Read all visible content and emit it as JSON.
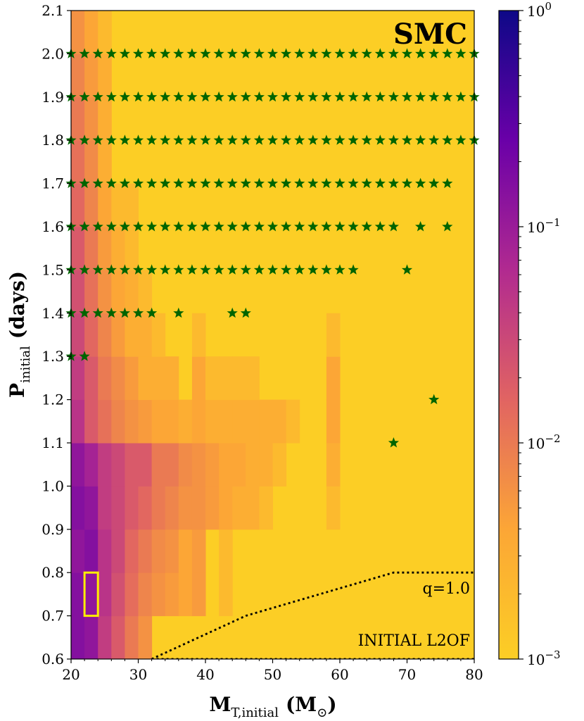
{
  "chart_data": {
    "type": "heatmap",
    "title": "SMC",
    "xlabel": {
      "main": "M",
      "sub": "T,initial",
      "unit": "(M",
      "unit_sub": "⊙",
      "unit_close": ")"
    },
    "ylabel": {
      "main": "P",
      "sub": "initial",
      "unit": "(days)"
    },
    "xlim": [
      20,
      80
    ],
    "ylim": [
      0.6,
      2.1
    ],
    "xticks": [
      "20",
      "30",
      "40",
      "50",
      "60",
      "70",
      "80"
    ],
    "yticks": [
      "0.6",
      "0.7",
      "0.8",
      "0.9",
      "1.0",
      "1.1",
      "1.2",
      "1.3",
      "1.4",
      "1.5",
      "1.6",
      "1.7",
      "1.8",
      "1.9",
      "2.0",
      "2.1"
    ],
    "colorbar": {
      "scale": "log",
      "range": [
        0.001,
        1
      ],
      "tick_labels": [
        {
          "base": "10",
          "exp": "0"
        },
        {
          "base": "10",
          "exp": "−1"
        },
        {
          "base": "10",
          "exp": "−2"
        },
        {
          "base": "10",
          "exp": "−3"
        }
      ],
      "colormap": [
        "#0d0887",
        "#6a00a8",
        "#b12a90",
        "#e16462",
        "#fca636",
        "#fcce25"
      ]
    },
    "background_value": 0.001,
    "cells": [
      [
        20,
        0.6,
        0.15
      ],
      [
        22,
        0.6,
        0.12
      ],
      [
        24,
        0.6,
        0.04
      ],
      [
        26,
        0.6,
        0.02
      ],
      [
        28,
        0.6,
        0.01
      ],
      [
        30,
        0.6,
        0.006
      ],
      [
        20,
        0.7,
        0.15
      ],
      [
        22,
        0.7,
        0.12
      ],
      [
        24,
        0.7,
        0.05
      ],
      [
        26,
        0.7,
        0.025
      ],
      [
        28,
        0.7,
        0.013
      ],
      [
        30,
        0.7,
        0.008
      ],
      [
        32,
        0.7,
        0.006
      ],
      [
        34,
        0.7,
        0.005
      ],
      [
        36,
        0.7,
        0.004
      ],
      [
        38,
        0.7,
        0.005
      ],
      [
        42,
        0.7,
        0.002
      ],
      [
        20,
        0.8,
        0.12
      ],
      [
        22,
        0.8,
        0.15
      ],
      [
        24,
        0.8,
        0.05
      ],
      [
        26,
        0.8,
        0.03
      ],
      [
        28,
        0.8,
        0.015
      ],
      [
        30,
        0.8,
        0.01
      ],
      [
        32,
        0.8,
        0.007
      ],
      [
        34,
        0.8,
        0.006
      ],
      [
        36,
        0.8,
        0.004
      ],
      [
        38,
        0.8,
        0.005
      ],
      [
        42,
        0.8,
        0.002
      ],
      [
        20,
        0.9,
        0.15
      ],
      [
        22,
        0.9,
        0.12
      ],
      [
        24,
        0.9,
        0.04
      ],
      [
        26,
        0.9,
        0.03
      ],
      [
        28,
        0.9,
        0.02
      ],
      [
        30,
        0.9,
        0.015
      ],
      [
        32,
        0.9,
        0.01
      ],
      [
        34,
        0.9,
        0.008
      ],
      [
        36,
        0.9,
        0.006
      ],
      [
        38,
        0.9,
        0.006
      ],
      [
        40,
        0.9,
        0.005
      ],
      [
        42,
        0.9,
        0.004
      ],
      [
        44,
        0.9,
        0.003
      ],
      [
        46,
        0.9,
        0.003
      ],
      [
        48,
        0.9,
        0.002
      ],
      [
        58,
        0.9,
        0.002
      ],
      [
        20,
        1.0,
        0.12
      ],
      [
        22,
        1.0,
        0.08
      ],
      [
        24,
        1.0,
        0.04
      ],
      [
        26,
        1.0,
        0.03
      ],
      [
        28,
        1.0,
        0.02
      ],
      [
        30,
        1.0,
        0.02
      ],
      [
        32,
        1.0,
        0.01
      ],
      [
        34,
        1.0,
        0.01
      ],
      [
        36,
        1.0,
        0.007
      ],
      [
        38,
        1.0,
        0.006
      ],
      [
        40,
        1.0,
        0.005
      ],
      [
        42,
        1.0,
        0.004
      ],
      [
        44,
        1.0,
        0.004
      ],
      [
        46,
        1.0,
        0.003
      ],
      [
        48,
        1.0,
        0.003
      ],
      [
        50,
        1.0,
        0.002
      ],
      [
        58,
        1.0,
        0.003
      ],
      [
        20,
        1.1,
        0.05
      ],
      [
        22,
        1.1,
        0.02
      ],
      [
        24,
        1.1,
        0.012
      ],
      [
        26,
        1.1,
        0.008
      ],
      [
        28,
        1.1,
        0.006
      ],
      [
        30,
        1.1,
        0.005
      ],
      [
        32,
        1.1,
        0.004
      ],
      [
        34,
        1.1,
        0.004
      ],
      [
        36,
        1.1,
        0.003
      ],
      [
        38,
        1.1,
        0.004
      ],
      [
        40,
        1.1,
        0.003
      ],
      [
        42,
        1.1,
        0.003
      ],
      [
        44,
        1.1,
        0.003
      ],
      [
        46,
        1.1,
        0.003
      ],
      [
        48,
        1.1,
        0.003
      ],
      [
        50,
        1.1,
        0.003
      ],
      [
        52,
        1.1,
        0.002
      ],
      [
        58,
        1.1,
        0.004
      ],
      [
        20,
        1.2,
        0.04
      ],
      [
        22,
        1.2,
        0.02
      ],
      [
        24,
        1.2,
        0.01
      ],
      [
        26,
        1.2,
        0.007
      ],
      [
        28,
        1.2,
        0.005
      ],
      [
        30,
        1.2,
        0.003
      ],
      [
        32,
        1.2,
        0.003
      ],
      [
        34,
        1.2,
        0.003
      ],
      [
        38,
        1.2,
        0.004
      ],
      [
        40,
        1.2,
        0.002
      ],
      [
        42,
        1.2,
        0.002
      ],
      [
        44,
        1.2,
        0.002
      ],
      [
        46,
        1.2,
        0.002
      ],
      [
        58,
        1.2,
        0.004
      ],
      [
        20,
        1.3,
        0.03
      ],
      [
        22,
        1.3,
        0.015
      ],
      [
        24,
        1.3,
        0.008
      ],
      [
        26,
        1.3,
        0.005
      ],
      [
        28,
        1.3,
        0.003
      ],
      [
        30,
        1.3,
        0.003
      ],
      [
        32,
        1.3,
        0.002
      ],
      [
        38,
        1.3,
        0.002
      ],
      [
        58,
        1.3,
        0.002
      ],
      [
        20,
        1.4,
        0.025
      ],
      [
        22,
        1.4,
        0.012
      ],
      [
        24,
        1.4,
        0.006
      ],
      [
        26,
        1.4,
        0.004
      ],
      [
        28,
        1.4,
        0.003
      ],
      [
        30,
        1.4,
        0.002
      ],
      [
        20,
        1.5,
        0.02
      ],
      [
        22,
        1.5,
        0.01
      ],
      [
        24,
        1.5,
        0.005
      ],
      [
        26,
        1.5,
        0.003
      ],
      [
        28,
        1.5,
        0.002
      ],
      [
        20,
        1.6,
        0.015
      ],
      [
        22,
        1.6,
        0.008
      ],
      [
        24,
        1.6,
        0.004
      ],
      [
        26,
        1.6,
        0.002
      ],
      [
        28,
        1.6,
        0.002
      ],
      [
        20,
        1.7,
        0.012
      ],
      [
        22,
        1.7,
        0.007
      ],
      [
        24,
        1.7,
        0.003
      ],
      [
        20,
        1.8,
        0.01
      ],
      [
        22,
        1.8,
        0.006
      ],
      [
        24,
        1.8,
        0.003
      ],
      [
        20,
        1.9,
        0.008
      ],
      [
        22,
        1.9,
        0.005
      ],
      [
        24,
        1.9,
        0.003
      ],
      [
        20,
        2.0,
        0.006
      ],
      [
        22,
        2.0,
        0.004
      ],
      [
        24,
        2.0,
        0.002
      ]
    ],
    "star_series": [
      {
        "y": 2.0,
        "x": [
          20,
          22,
          24,
          26,
          28,
          30,
          32,
          34,
          36,
          38,
          40,
          42,
          44,
          46,
          48,
          50,
          52,
          54,
          56,
          58,
          60,
          62,
          64,
          66,
          68,
          70,
          72,
          74,
          76,
          78,
          80
        ]
      },
      {
        "y": 1.9,
        "x": [
          20,
          22,
          24,
          26,
          28,
          30,
          32,
          34,
          36,
          38,
          40,
          42,
          44,
          46,
          48,
          50,
          52,
          54,
          56,
          58,
          60,
          62,
          64,
          66,
          68,
          70,
          72,
          74,
          76,
          78,
          80
        ]
      },
      {
        "y": 1.8,
        "x": [
          20,
          22,
          24,
          26,
          28,
          30,
          32,
          34,
          36,
          38,
          40,
          42,
          44,
          46,
          48,
          50,
          52,
          54,
          56,
          58,
          60,
          62,
          64,
          66,
          68,
          70,
          72,
          74,
          76,
          78,
          80
        ]
      },
      {
        "y": 1.7,
        "x": [
          20,
          22,
          24,
          26,
          28,
          30,
          32,
          34,
          36,
          38,
          40,
          42,
          44,
          46,
          48,
          50,
          52,
          54,
          56,
          58,
          60,
          62,
          64,
          66,
          68,
          70,
          72,
          74,
          76
        ]
      },
      {
        "y": 1.6,
        "x": [
          20,
          22,
          24,
          26,
          28,
          30,
          32,
          34,
          36,
          38,
          40,
          42,
          44,
          46,
          48,
          50,
          52,
          54,
          56,
          58,
          60,
          62,
          64,
          66,
          68,
          72,
          76
        ]
      },
      {
        "y": 1.5,
        "x": [
          20,
          22,
          24,
          26,
          28,
          30,
          32,
          34,
          36,
          38,
          40,
          42,
          44,
          46,
          48,
          50,
          52,
          54,
          56,
          58,
          60,
          62,
          70
        ]
      },
      {
        "y": 1.4,
        "x": [
          20,
          22,
          24,
          26,
          28,
          30,
          32,
          36,
          44,
          46
        ]
      },
      {
        "y": 1.3,
        "x": [
          20,
          22
        ]
      },
      {
        "y": 1.2,
        "x": [
          74
        ]
      },
      {
        "y": 1.1,
        "x": [
          68
        ]
      }
    ],
    "lines": [
      {
        "label": "q=1.0",
        "points": [
          [
            32,
            0.6
          ],
          [
            46,
            0.7
          ],
          [
            68,
            0.8
          ],
          [
            80,
            0.8
          ]
        ]
      },
      {
        "label": "INITIAL L2OF",
        "points": [
          [
            32,
            0.6
          ],
          [
            80,
            0.6
          ]
        ]
      }
    ],
    "highlight_box": {
      "x": [
        22,
        24
      ],
      "y": [
        0.7,
        0.8
      ]
    }
  }
}
